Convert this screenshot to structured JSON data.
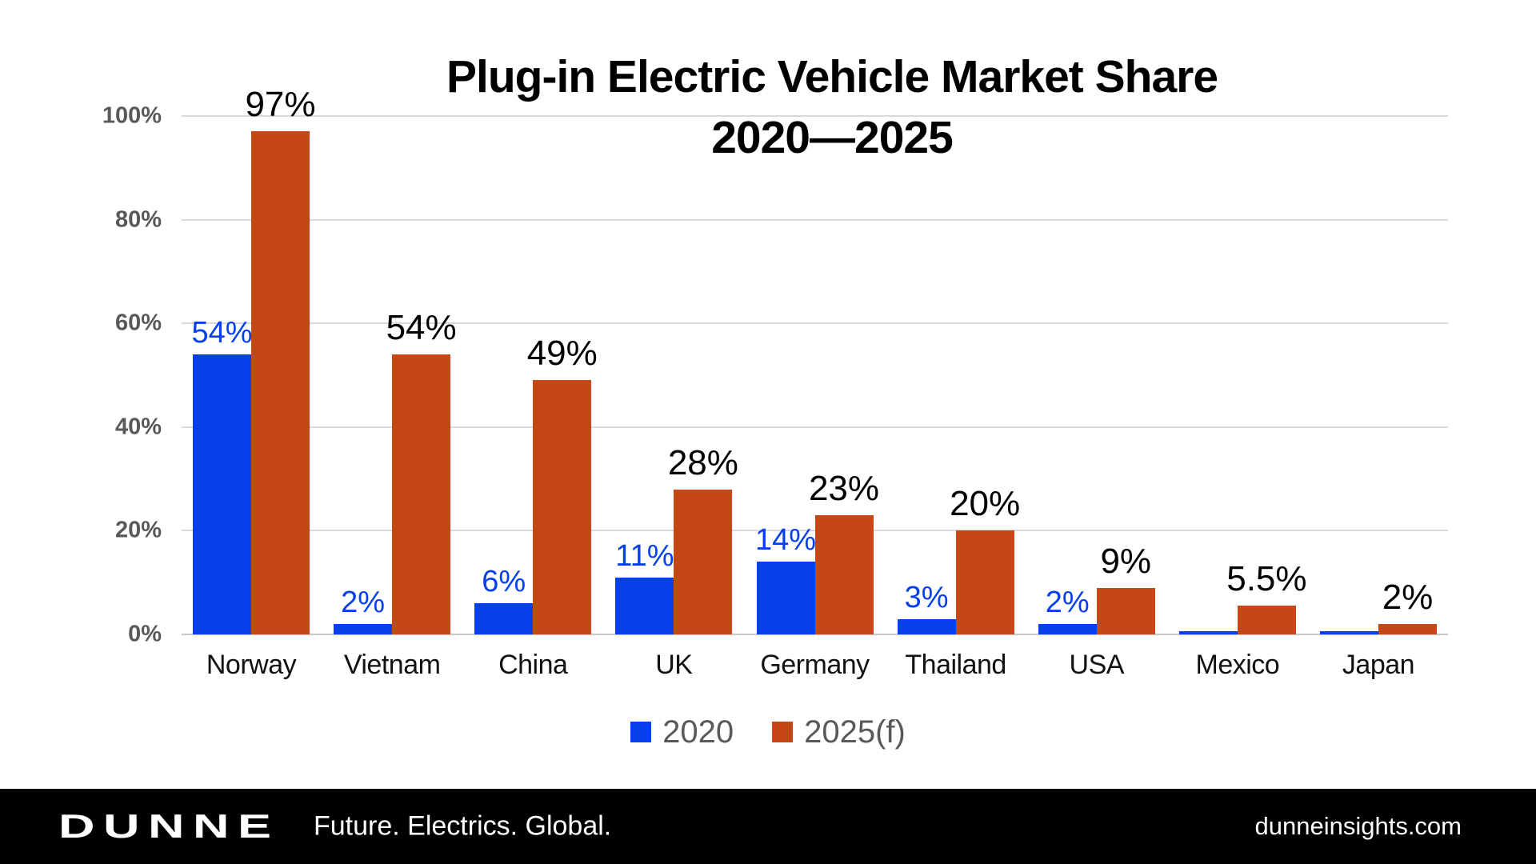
{
  "title": {
    "line1": "Plug-in Electric Vehicle Market Share",
    "line2": "2020—2025"
  },
  "chart_data": {
    "type": "bar",
    "title": "Plug-in Electric Vehicle Market Share 2020—2025",
    "categories": [
      "Norway",
      "Vietnam",
      "China",
      "UK",
      "Germany",
      "Thailand",
      "USA",
      "Mexico",
      "Japan"
    ],
    "series": [
      {
        "name": "2020",
        "color": "#0540EC",
        "label_color": "#0540EC",
        "values": [
          54,
          2,
          6,
          11,
          14,
          3,
          2,
          0.6,
          0.6
        ],
        "labels": [
          "54%",
          "2%",
          "6%",
          "11%",
          "14%",
          "3%",
          "2%",
          "",
          ""
        ]
      },
      {
        "name": "2025(f)",
        "color": "#C44715",
        "label_color": "#000000",
        "values": [
          97,
          54,
          49,
          28,
          23,
          20,
          9,
          5.5,
          2
        ],
        "labels": [
          "97%",
          "54%",
          "49%",
          "28%",
          "23%",
          "20%",
          "9%",
          "5.5%",
          "2%"
        ]
      }
    ],
    "y_axis": {
      "min": 0,
      "max": 100,
      "tick_step": 20,
      "tick_labels": [
        "0%",
        "20%",
        "40%",
        "60%",
        "80%",
        "100%"
      ],
      "grid": true
    },
    "legend": {
      "position": "bottom",
      "entries": [
        "2020",
        "2025(f)"
      ]
    }
  },
  "colors": {
    "series_2020": "#0540EC",
    "series_2025": "#C44715",
    "gridline": "#d9d9d9",
    "axis_text": "#595959",
    "footer_bg": "#000000"
  },
  "footer": {
    "logo": "DUNNE",
    "tagline": "Future. Electrics. Global.",
    "website": "dunneinsights.com"
  }
}
